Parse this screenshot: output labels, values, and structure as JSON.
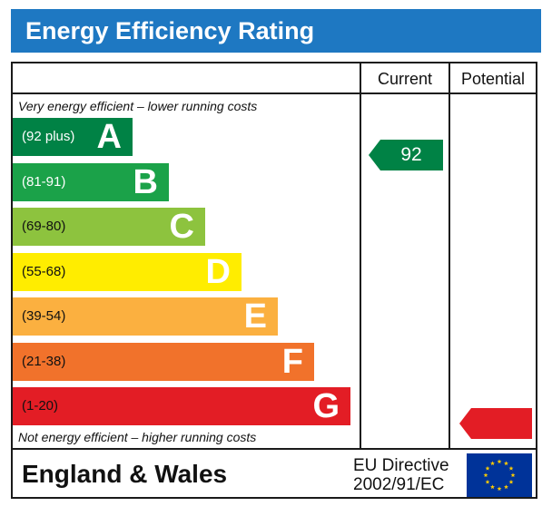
{
  "header": {
    "title": "Energy Efficiency Rating"
  },
  "columns": {
    "current": "Current",
    "potential": "Potential"
  },
  "notes": {
    "top": "Very energy efficient – lower running costs",
    "bottom": "Not energy efficient – higher running costs"
  },
  "footer": {
    "region": "England & Wales",
    "directive_line1": "EU Directive",
    "directive_line2": "2002/91/EC"
  },
  "chart_data": {
    "type": "bar",
    "title": "Energy Efficiency Rating",
    "categories": [
      "A",
      "B",
      "C",
      "D",
      "E",
      "F",
      "G"
    ],
    "ranges": [
      "(92 plus)",
      "(81-91)",
      "(69-80)",
      "(55-68)",
      "(39-54)",
      "(21-38)",
      "(1-20)"
    ],
    "colors": [
      "#008245",
      "#1ba249",
      "#8dc33e",
      "#ffed00",
      "#fbb040",
      "#f1722b",
      "#e31d25"
    ],
    "range_text_colors": [
      "#ffffff",
      "#ffffff",
      "#111111",
      "#111111",
      "#111111",
      "#111111",
      "#111111"
    ],
    "current": {
      "value": 92,
      "band": "A",
      "color": "#008245"
    },
    "potential": {
      "value": "",
      "band": "G",
      "color": "#e31d25"
    }
  }
}
